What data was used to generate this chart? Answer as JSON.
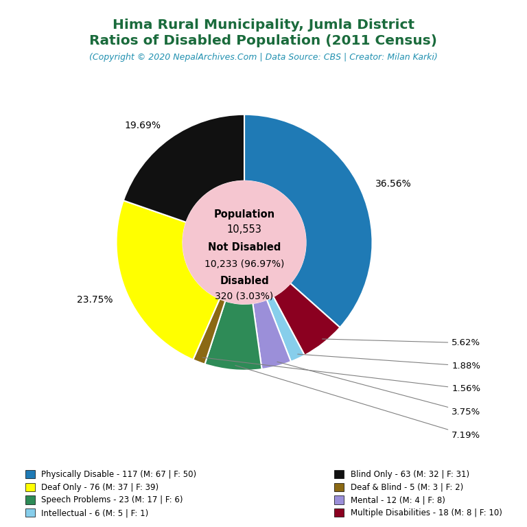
{
  "title_line1": "Hima Rural Municipality, Jumla District",
  "title_line2": "Ratios of Disabled Population (2011 Census)",
  "subtitle": "(Copyright © 2020 NepalArchives.Com | Data Source: CBS | Creator: Milan Karki)",
  "title_color": "#1a6b3c",
  "subtitle_color": "#2090b0",
  "center_bg": "#f5c6d0",
  "slices": [
    {
      "label": "Physically Disable - 117 (M: 67 | F: 50)",
      "value": 117,
      "pct": "36.56%",
      "color": "#1f7ab5",
      "label_direct": true
    },
    {
      "label": "Multiple Disabilities - 18 (M: 8 | F: 10)",
      "value": 18,
      "pct": "5.62%",
      "color": "#8b0020",
      "label_direct": false
    },
    {
      "label": "Intellectual - 6 (M: 5 | F: 1)",
      "value": 6,
      "pct": "1.88%",
      "color": "#87ceeb",
      "label_direct": false
    },
    {
      "label": "Mental - 12 (M: 4 | F: 8)",
      "value": 12,
      "pct": "3.75%",
      "color": "#9b8fd9",
      "label_direct": false
    },
    {
      "label": "Speech Problems - 23 (M: 17 | F: 6)",
      "value": 23,
      "pct": "7.19%",
      "color": "#2e8b57",
      "label_direct": false
    },
    {
      "label": "Deaf & Blind - 5 (M: 3 | F: 2)",
      "value": 5,
      "pct": "1.56%",
      "color": "#8b6914",
      "label_direct": false
    },
    {
      "label": "Deaf Only - 76 (M: 37 | F: 39)",
      "value": 76,
      "pct": "23.75%",
      "color": "#ffff00",
      "label_direct": true
    },
    {
      "label": "Blind Only - 63 (M: 32 | F: 31)",
      "value": 63,
      "pct": "19.69%",
      "color": "#111111",
      "label_direct": true
    }
  ],
  "legend_left": [
    {
      "label": "Physically Disable - 117 (M: 67 | F: 50)",
      "color": "#1f7ab5"
    },
    {
      "label": "Deaf Only - 76 (M: 37 | F: 39)",
      "color": "#ffff00"
    },
    {
      "label": "Speech Problems - 23 (M: 17 | F: 6)",
      "color": "#2e8b57"
    },
    {
      "label": "Intellectual - 6 (M: 5 | F: 1)",
      "color": "#87ceeb"
    }
  ],
  "legend_right": [
    {
      "label": "Blind Only - 63 (M: 32 | F: 31)",
      "color": "#111111"
    },
    {
      "label": "Deaf & Blind - 5 (M: 3 | F: 2)",
      "color": "#8b6914"
    },
    {
      "label": "Mental - 12 (M: 4 | F: 8)",
      "color": "#9b8fd9"
    },
    {
      "label": "Multiple Disabilities - 18 (M: 8 | F: 10)",
      "color": "#8b0020"
    }
  ],
  "background_color": "#ffffff"
}
